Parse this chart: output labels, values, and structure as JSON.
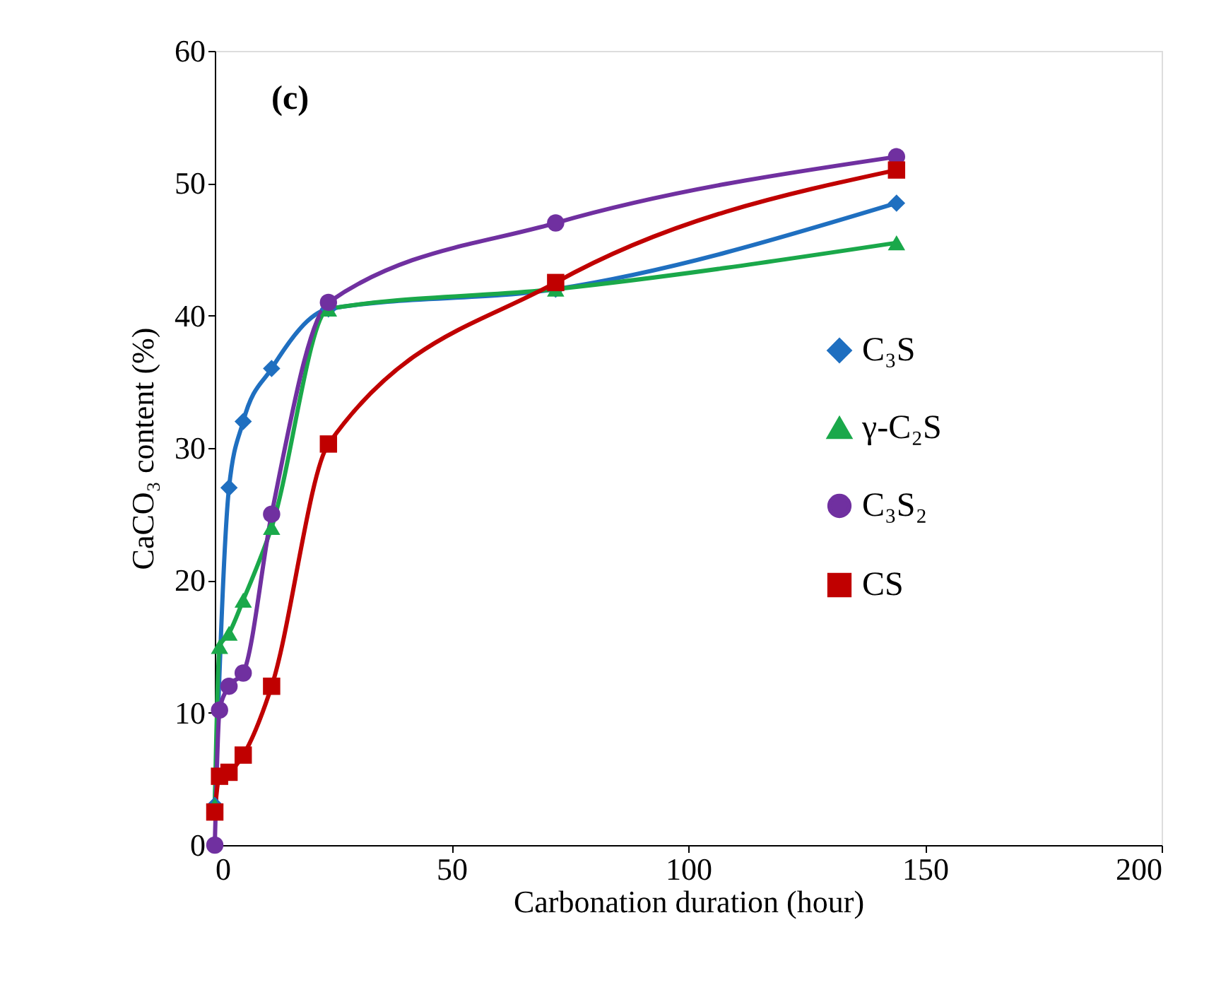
{
  "chart_data": {
    "type": "line",
    "xlabel": "Carbonation duration (hour)",
    "ylabel": "CaCO₃ content (%)",
    "xlim": [
      0,
      200
    ],
    "xticks": [
      0,
      50,
      100,
      150,
      200
    ],
    "ylim": [
      0,
      60
    ],
    "yticks": [
      0,
      10,
      20,
      30,
      40,
      50,
      60
    ],
    "grid": false,
    "legend": "right",
    "line_style": "solid",
    "annotations": [
      "(c)"
    ],
    "series": [
      {
        "name": "C₃S",
        "color": "#1f6fc0",
        "marker": "diamond",
        "x": [
          0,
          3,
          6,
          12,
          24,
          72,
          144
        ],
        "values": [
          3,
          27,
          32,
          36,
          40.5,
          42,
          48.5
        ]
      },
      {
        "name": "γ-C₂S",
        "color": "#1aa84a",
        "marker": "triangle",
        "x": [
          0,
          1,
          3,
          6,
          12,
          24,
          72,
          144
        ],
        "values": [
          3,
          15,
          16,
          18.5,
          24,
          40.5,
          42,
          45.5
        ]
      },
      {
        "name": "C₃S₂",
        "color": "#7030a0",
        "marker": "circle",
        "x": [
          0,
          1,
          3,
          6,
          12,
          24,
          72,
          144
        ],
        "values": [
          0,
          10.2,
          12,
          13,
          25,
          41,
          47,
          52
        ]
      },
      {
        "name": "CS",
        "color": "#c00000",
        "marker": "square",
        "x": [
          0,
          1,
          3,
          6,
          12,
          24,
          72,
          144
        ],
        "values": [
          2.5,
          5.2,
          5.5,
          6.8,
          12,
          30.3,
          42.5,
          51
        ]
      }
    ]
  }
}
